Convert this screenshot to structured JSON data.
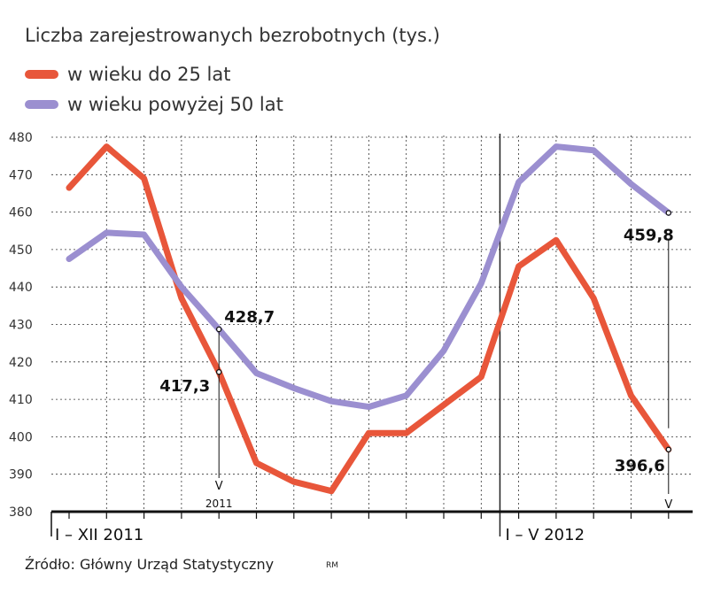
{
  "chart_data": {
    "type": "line",
    "title": "Liczba zarejestrowanych bezrobotnych (tys.)",
    "ylim": [
      380,
      480
    ],
    "yticks": [
      380,
      390,
      400,
      410,
      420,
      430,
      440,
      450,
      460,
      470,
      480
    ],
    "x_period_labels": [
      {
        "label": "I – XII 2011",
        "start_index": 0
      },
      {
        "label": "I – V 2012",
        "start_index": 12
      }
    ],
    "annotation_month": "V",
    "annotation_year": "2011",
    "series": [
      {
        "name": "w wieku do 25 lat",
        "color": "#e8563a",
        "values": [
          466.5,
          477.5,
          469,
          437,
          417.3,
          393,
          388,
          385.5,
          401,
          401,
          408.5,
          416,
          445.5,
          452.5,
          437,
          411,
          396.6
        ]
      },
      {
        "name": "w wieku powyżej 50 lat",
        "color": "#9b8fd0",
        "values": [
          447.5,
          454.5,
          454,
          440,
          428.7,
          417,
          413,
          409.5,
          408,
          411,
          423,
          441,
          468,
          477.5,
          476.5,
          467.5,
          459.8
        ]
      }
    ],
    "annotations": [
      {
        "series": 0,
        "index": 4,
        "text": "417,3"
      },
      {
        "series": 1,
        "index": 4,
        "text": "428,7"
      },
      {
        "series": 1,
        "index": 16,
        "text": "459,8"
      },
      {
        "series": 0,
        "index": 16,
        "text": "396,6"
      }
    ]
  },
  "source": "Źródło: Główny Urząd Statystyczny",
  "credit": "RM"
}
